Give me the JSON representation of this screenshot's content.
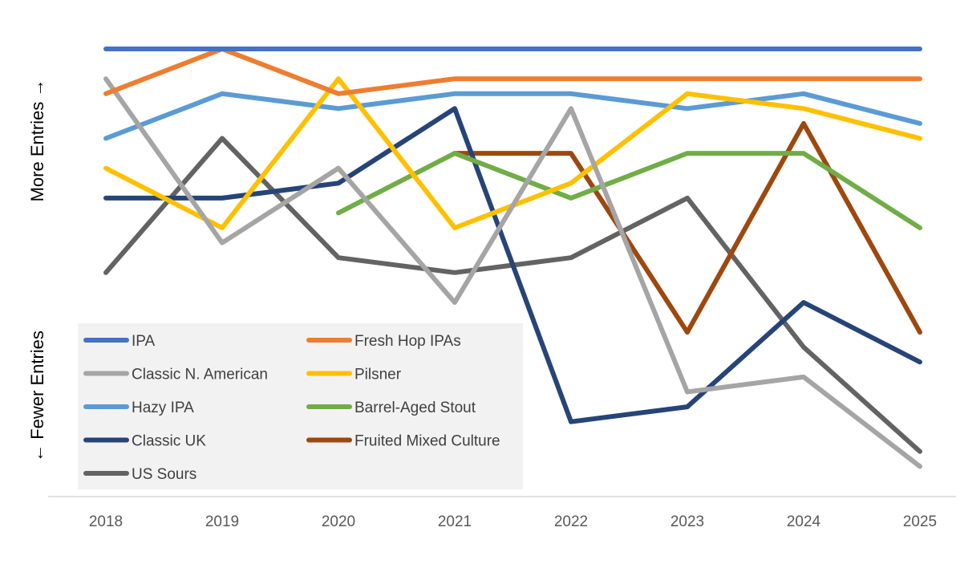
{
  "chart_data": {
    "type": "line",
    "title": "",
    "xlabel": "",
    "ylabel_top": "More Entries →",
    "ylabel_bottom": "← Fewer Entries",
    "categories": [
      "2018",
      "2019",
      "2020",
      "2021",
      "2022",
      "2023",
      "2024",
      "2025"
    ],
    "y_inverted": true,
    "ylim": [
      1,
      30
    ],
    "grid": false,
    "legend_position": "bottom-left",
    "series": [
      {
        "name": "IPA",
        "color": "#4472C4",
        "values": [
          1,
          1,
          1,
          1,
          1,
          1,
          1,
          1
        ]
      },
      {
        "name": "Fresh Hop IPAs",
        "color": "#ED7D31",
        "values": [
          4,
          1,
          4,
          3,
          3,
          3,
          3,
          3
        ]
      },
      {
        "name": "Classic N. American",
        "color": "#A5A5A5",
        "values": [
          3,
          14,
          9,
          18,
          5,
          24,
          23,
          29
        ]
      },
      {
        "name": "Pilsner",
        "color": "#FFC000",
        "values": [
          9,
          13,
          3,
          13,
          10,
          4,
          5,
          7
        ]
      },
      {
        "name": "Hazy IPA",
        "color": "#5B9BD5",
        "values": [
          7,
          4,
          5,
          4,
          4,
          5,
          4,
          6
        ]
      },
      {
        "name": "Barrel-Aged Stout",
        "color": "#70AD47",
        "values": [
          null,
          null,
          12,
          8,
          11,
          8,
          8,
          13
        ]
      },
      {
        "name": "Classic UK",
        "color": "#264478",
        "values": [
          11,
          11,
          10,
          5,
          26,
          25,
          18,
          22
        ]
      },
      {
        "name": "Fruited Mixed Culture",
        "color": "#9E480E",
        "values": [
          null,
          null,
          null,
          8,
          8,
          20,
          6,
          20
        ]
      },
      {
        "name": "US Sours",
        "color": "#636363",
        "values": [
          16,
          7,
          15,
          16,
          15,
          11,
          21,
          28
        ]
      }
    ]
  }
}
